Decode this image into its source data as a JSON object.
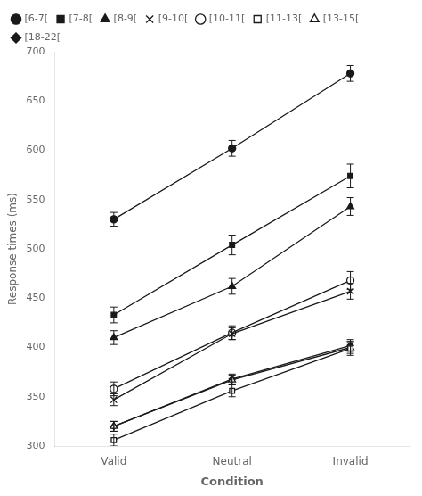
{
  "chart_data": {
    "type": "line",
    "xlabel": "Condition",
    "ylabel": "Response times (ms)",
    "categories": [
      "Valid",
      "Neutral",
      "Invalid"
    ],
    "series": [
      {
        "name": "[6-7[",
        "color": "#1a1a1a",
        "marker": "circle",
        "values": [
          530,
          602,
          678
        ],
        "errors": [
          7,
          8,
          8
        ]
      },
      {
        "name": "[7-8[",
        "color": "#1a1a1a",
        "marker": "square",
        "values": [
          433,
          504,
          574
        ],
        "errors": [
          8,
          10,
          12
        ]
      },
      {
        "name": "[8-9[",
        "color": "#1a1a1a",
        "marker": "triangle",
        "values": [
          410,
          462,
          543
        ],
        "errors": [
          7,
          8,
          9
        ]
      },
      {
        "name": "[9-10[",
        "color": "#1a1a1a",
        "marker": "x",
        "values": [
          347,
          414,
          457
        ],
        "errors": [
          6,
          6,
          8
        ]
      },
      {
        "name": "[10-11[",
        "color": "#1a1a1a",
        "marker": "open-circle",
        "values": [
          358,
          415,
          468
        ],
        "errors": [
          7,
          7,
          9
        ]
      },
      {
        "name": "[11-13[",
        "color": "#1a1a1a",
        "marker": "open-square",
        "values": [
          306,
          356,
          399
        ],
        "errors": [
          6,
          6,
          7
        ]
      },
      {
        "name": "[13-15[",
        "color": "#1a1a1a",
        "marker": "open-triangle",
        "values": [
          320,
          367,
          400
        ],
        "errors": [
          5,
          5,
          6
        ]
      },
      {
        "name": "[18-22[",
        "color": "#1a1a1a",
        "marker": "diamond",
        "values": [
          320,
          368,
          402
        ],
        "errors": [
          5,
          5,
          6
        ]
      }
    ],
    "ylim": [
      300,
      700
    ],
    "yticks": [
      300,
      350,
      400,
      450,
      500,
      550,
      600,
      650,
      700
    ],
    "grid": false,
    "legend": "upper left"
  }
}
